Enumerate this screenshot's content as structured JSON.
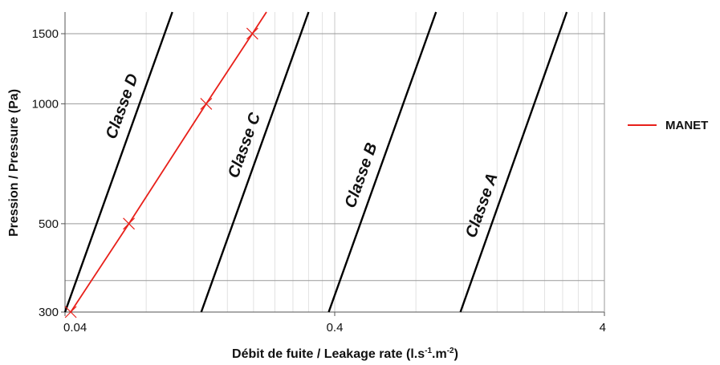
{
  "chart_data": {
    "type": "line",
    "x_scale": "log",
    "y_scale": "log",
    "xlim": [
      0.04,
      4
    ],
    "ylim": [
      300,
      1700
    ],
    "x_ticks": [
      0.04,
      0.4,
      4
    ],
    "x_tick_labels": [
      "0.04",
      "0.4",
      "4"
    ],
    "y_ticks": [
      300,
      500,
      1000,
      1500
    ],
    "y_tick_labels": [
      "300",
      "500",
      "1000",
      "1500"
    ],
    "y_grid_extra": [
      360
    ],
    "xlabel_main": "Débit de fuite / Leakage rate (l.s",
    "xlabel_exp1": "-1",
    "xlabel_mid": ".m",
    "xlabel_exp2": "-2",
    "xlabel_end": ")",
    "ylabel": "Pression / Pressure (Pa)",
    "grid": true,
    "legend_position": "right",
    "legend_label": "MANET",
    "colors": {
      "MANET": "#e8201a",
      "classes": "#000000",
      "grid": "#999999",
      "minor_grid": "#e2e2e2"
    },
    "class_lines": [
      {
        "label": "Classe D",
        "points": [
          [
            0.04,
            300
          ],
          [
            0.1,
            1700
          ]
        ]
      },
      {
        "label": "Classe C",
        "points": [
          [
            0.128,
            300
          ],
          [
            0.32,
            1700
          ]
        ]
      },
      {
        "label": "Classe B",
        "points": [
          [
            0.38,
            300
          ],
          [
            0.95,
            1700
          ]
        ]
      },
      {
        "label": "Classe A",
        "points": [
          [
            1.17,
            300
          ],
          [
            2.9,
            1700
          ]
        ]
      }
    ],
    "series": [
      {
        "name": "MANET",
        "points": [
          [
            0.042,
            300
          ],
          [
            0.069,
            500
          ],
          [
            0.1335,
            1000
          ],
          [
            0.198,
            1500
          ]
        ]
      }
    ]
  }
}
